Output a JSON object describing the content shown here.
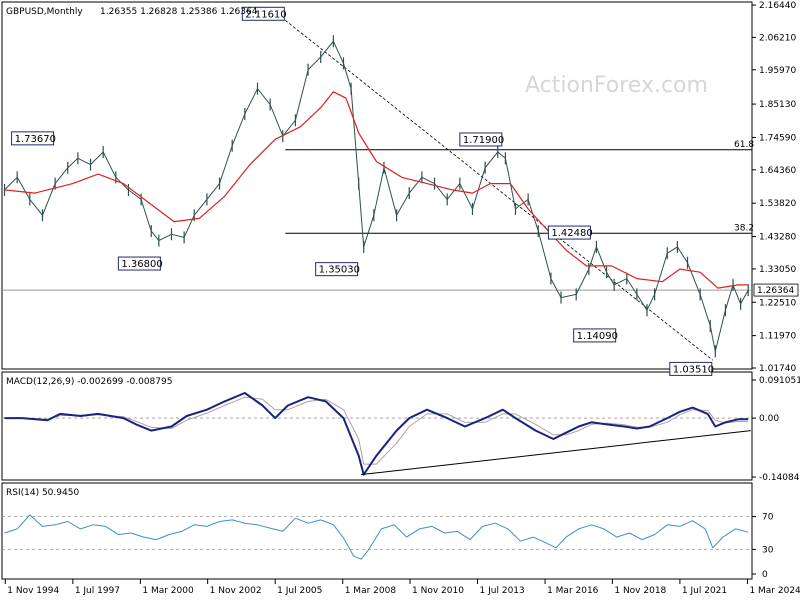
{
  "header": {
    "symbol": "GBPUSD,Monthly",
    "ohlc": "1.26355 1.26828 1.25386 1.26364"
  },
  "watermark": "ActionForex.com",
  "colors": {
    "price": "#2f4f4f",
    "ma": "#dd2222",
    "macd": "#1a237e",
    "signal": "#b0a0a8",
    "rsi": "#3a8fd6",
    "level": "#000000"
  },
  "chart_data": [
    {
      "type": "line",
      "panel": "price",
      "ylim": [
        1.0174,
        2.1644
      ],
      "y_ticks": [
        "2.16440",
        "2.06210",
        "1.95970",
        "1.85130",
        "1.74590",
        "1.64360",
        "1.53820",
        "1.43280",
        "1.33050",
        "1.22510",
        "1.11970",
        "1.01740"
      ],
      "current_value": "1.26364",
      "x_ticks": [
        "1 Nov 1994",
        "1 Jul 1997",
        "1 Mar 2000",
        "1 Nov 2002",
        "1 Jul 2005",
        "1 Mar 2008",
        "1 Nov 2010",
        "1 Jul 2013",
        "1 Mar 2016",
        "1 Nov 2018",
        "1 Jul 2021",
        "1 Mar 2024"
      ],
      "x_tick_years": [
        1994.83,
        1997.5,
        2000.17,
        2002.83,
        2005.5,
        2008.17,
        2010.83,
        2013.5,
        2016.17,
        2018.83,
        2021.5,
        2024.17
      ],
      "xlim": [
        1994.7,
        2024.35
      ],
      "series": [
        {
          "role": "price",
          "x": [
            1994.8,
            1995.3,
            1995.8,
            1996.3,
            1996.8,
            1997.3,
            1997.7,
            1998.2,
            1998.7,
            1999.2,
            1999.7,
            2000.2,
            2000.6,
            2000.9,
            2001.4,
            2001.9,
            2002.3,
            2002.8,
            2003.3,
            2003.8,
            2004.3,
            2004.8,
            2005.3,
            2005.8,
            2006.3,
            2006.8,
            2007.3,
            2007.8,
            2008.2,
            2008.5,
            2008.8,
            2009.0,
            2009.4,
            2009.8,
            2010.3,
            2010.8,
            2011.3,
            2011.8,
            2012.3,
            2012.8,
            2013.3,
            2013.8,
            2014.3,
            2014.6,
            2015.0,
            2015.5,
            2015.9,
            2016.4,
            2016.8,
            2017.4,
            2017.9,
            2018.2,
            2018.6,
            2018.9,
            2019.4,
            2019.8,
            2020.2,
            2020.5,
            2021.0,
            2021.4,
            2021.8,
            2022.3,
            2022.7,
            2022.9,
            2023.3,
            2023.6,
            2023.9,
            2024.2
          ],
          "values": [
            1.58,
            1.62,
            1.55,
            1.5,
            1.6,
            1.65,
            1.68,
            1.66,
            1.7,
            1.62,
            1.58,
            1.55,
            1.45,
            1.42,
            1.44,
            1.43,
            1.5,
            1.55,
            1.6,
            1.72,
            1.82,
            1.9,
            1.85,
            1.75,
            1.8,
            1.96,
            2.0,
            2.05,
            1.98,
            1.9,
            1.6,
            1.4,
            1.5,
            1.65,
            1.5,
            1.57,
            1.62,
            1.6,
            1.55,
            1.6,
            1.52,
            1.65,
            1.7,
            1.68,
            1.52,
            1.55,
            1.45,
            1.3,
            1.24,
            1.25,
            1.33,
            1.4,
            1.32,
            1.28,
            1.3,
            1.25,
            1.2,
            1.25,
            1.38,
            1.4,
            1.35,
            1.25,
            1.15,
            1.07,
            1.2,
            1.28,
            1.22,
            1.26364
          ]
        },
        {
          "role": "ma",
          "x": [
            1994.8,
            1996.0,
            1997.5,
            1998.5,
            1999.5,
            2000.5,
            2001.5,
            2002.5,
            2003.5,
            2004.5,
            2005.5,
            2006.5,
            2007.3,
            2007.8,
            2008.3,
            2008.8,
            2009.5,
            2010.5,
            2011.5,
            2012.5,
            2013.3,
            2014.0,
            2014.8,
            2015.5,
            2016.3,
            2017.0,
            2017.8,
            2018.8,
            2019.8,
            2020.8,
            2021.5,
            2022.3,
            2023.0,
            2023.8,
            2024.2
          ],
          "values": [
            1.58,
            1.57,
            1.6,
            1.63,
            1.6,
            1.54,
            1.48,
            1.49,
            1.56,
            1.66,
            1.74,
            1.78,
            1.84,
            1.89,
            1.87,
            1.76,
            1.67,
            1.62,
            1.6,
            1.58,
            1.57,
            1.6,
            1.6,
            1.52,
            1.45,
            1.39,
            1.34,
            1.34,
            1.3,
            1.29,
            1.33,
            1.32,
            1.27,
            1.28,
            1.28
          ]
        }
      ],
      "levels": [
        {
          "name": "61.8",
          "value": 1.707
        },
        {
          "name": "38.2",
          "value": 1.443
        },
        {
          "name": "",
          "value": 1.26364,
          "style": "current"
        }
      ],
      "trendline": {
        "from": [
          2005.9,
          2.116
        ],
        "to": [
          2022.8,
          1.042
        ]
      },
      "labels": [
        {
          "text": "2.11610",
          "x": 2005.9,
          "y": 2.1161,
          "side": "left-top"
        },
        {
          "text": "1.73670",
          "x": 1995.0,
          "y": 1.7367,
          "side": "right-top"
        },
        {
          "text": "1.36800",
          "x": 2001.0,
          "y": 1.368,
          "side": "left-bottom"
        },
        {
          "text": "1.35030",
          "x": 2008.8,
          "y": 1.3503,
          "side": "left-bottom"
        },
        {
          "text": "1.71900",
          "x": 2014.5,
          "y": 1.719,
          "side": "left-top"
        },
        {
          "text": "1.42480",
          "x": 2018.0,
          "y": 1.4248,
          "side": "left-top"
        },
        {
          "text": "1.14090",
          "x": 2019.0,
          "y": 1.1409,
          "side": "left-bottom"
        },
        {
          "text": "1.03510",
          "x": 2022.8,
          "y": 1.0351,
          "side": "left-bottom"
        }
      ]
    },
    {
      "type": "line",
      "panel": "macd",
      "title": "MACD(12,26,9) -0.002699 -0.008795",
      "ylim": [
        -0.140843,
        0.091051
      ],
      "y_ticks": [
        "0.091051",
        "0.00",
        "-0.140843"
      ],
      "series": [
        {
          "role": "macd",
          "x": [
            1994.8,
            1995.5,
            1996.5,
            1997.0,
            1997.8,
            1998.5,
            1999.5,
            2000.0,
            2000.6,
            2001.4,
            2002.0,
            2002.8,
            2003.5,
            2004.3,
            2005.0,
            2005.5,
            2006.0,
            2006.8,
            2007.5,
            2008.2,
            2008.8,
            2009.0,
            2009.5,
            2010.3,
            2010.8,
            2011.5,
            2012.3,
            2013.0,
            2013.8,
            2014.5,
            2015.0,
            2015.8,
            2016.5,
            2017.0,
            2017.5,
            2018.0,
            2018.6,
            2019.3,
            2019.8,
            2020.3,
            2021.0,
            2021.5,
            2022.0,
            2022.6,
            2022.9,
            2023.3,
            2023.8,
            2024.2
          ],
          "values": [
            0.0,
            0.0,
            -0.005,
            0.01,
            0.005,
            0.01,
            0.0,
            -0.015,
            -0.03,
            -0.02,
            0.005,
            0.02,
            0.04,
            0.06,
            0.03,
            0.0,
            0.03,
            0.05,
            0.04,
            0.0,
            -0.09,
            -0.135,
            -0.09,
            -0.03,
            0.0,
            0.02,
            0.0,
            -0.02,
            0.0,
            0.02,
            0.0,
            -0.03,
            -0.05,
            -0.035,
            -0.02,
            -0.01,
            -0.015,
            -0.02,
            -0.025,
            -0.02,
            0.0,
            0.015,
            0.025,
            0.01,
            -0.02,
            -0.01,
            -0.003,
            -0.002699
          ]
        },
        {
          "role": "signal",
          "x": [
            1994.8,
            1995.5,
            1996.5,
            1997.0,
            1997.8,
            1998.5,
            1999.5,
            2000.0,
            2000.6,
            2001.4,
            2002.0,
            2002.8,
            2003.5,
            2004.3,
            2005.0,
            2005.5,
            2006.0,
            2006.8,
            2007.5,
            2008.2,
            2008.8,
            2009.0,
            2009.5,
            2010.3,
            2010.8,
            2011.5,
            2012.3,
            2013.0,
            2013.8,
            2014.5,
            2015.0,
            2015.8,
            2016.5,
            2017.0,
            2017.5,
            2018.0,
            2018.6,
            2019.3,
            2019.8,
            2020.3,
            2021.0,
            2021.5,
            2022.0,
            2022.6,
            2022.9,
            2023.3,
            2023.8,
            2024.2
          ],
          "values": [
            0.0,
            0.0,
            -0.003,
            0.006,
            0.007,
            0.008,
            0.003,
            -0.008,
            -0.022,
            -0.025,
            -0.005,
            0.012,
            0.03,
            0.05,
            0.045,
            0.02,
            0.02,
            0.04,
            0.045,
            0.02,
            -0.05,
            -0.11,
            -0.11,
            -0.06,
            -0.02,
            0.01,
            0.01,
            -0.01,
            -0.01,
            0.01,
            0.01,
            -0.015,
            -0.04,
            -0.04,
            -0.03,
            -0.015,
            -0.012,
            -0.016,
            -0.022,
            -0.022,
            -0.01,
            0.008,
            0.02,
            0.018,
            -0.005,
            -0.012,
            -0.008,
            -0.008795
          ]
        }
      ],
      "trendline": {
        "from": [
          2008.9,
          -0.135
        ],
        "to": [
          2024.3,
          -0.03
        ]
      }
    },
    {
      "type": "line",
      "panel": "rsi",
      "title": "RSI(14) 50.9450",
      "ylim": [
        0,
        100
      ],
      "y_ticks": [
        "70",
        "30",
        "0"
      ],
      "levels": [
        70,
        30
      ],
      "series": [
        {
          "role": "rsi",
          "x": [
            1994.8,
            1995.3,
            1995.8,
            1996.3,
            1996.8,
            1997.3,
            1997.8,
            1998.3,
            1998.8,
            1999.3,
            1999.8,
            2000.3,
            2000.8,
            2001.3,
            2001.8,
            2002.3,
            2002.8,
            2003.3,
            2003.8,
            2004.3,
            2004.8,
            2005.3,
            2005.8,
            2006.3,
            2006.8,
            2007.3,
            2007.8,
            2008.2,
            2008.6,
            2008.9,
            2009.2,
            2009.7,
            2010.2,
            2010.7,
            2011.2,
            2011.7,
            2012.2,
            2012.7,
            2013.2,
            2013.7,
            2014.2,
            2014.7,
            2015.2,
            2015.7,
            2016.2,
            2016.6,
            2017.0,
            2017.5,
            2018.0,
            2018.5,
            2019.0,
            2019.5,
            2020.0,
            2020.5,
            2021.0,
            2021.5,
            2022.0,
            2022.5,
            2022.8,
            2023.2,
            2023.7,
            2024.2
          ],
          "values": [
            50,
            55,
            72,
            58,
            60,
            64,
            55,
            60,
            58,
            48,
            50,
            45,
            42,
            48,
            52,
            60,
            58,
            64,
            66,
            62,
            60,
            56,
            52,
            68,
            62,
            66,
            60,
            44,
            22,
            18,
            30,
            55,
            60,
            45,
            55,
            58,
            50,
            52,
            42,
            58,
            62,
            55,
            40,
            45,
            38,
            32,
            45,
            55,
            60,
            55,
            45,
            50,
            42,
            48,
            60,
            58,
            65,
            55,
            32,
            45,
            55,
            50.945
          ]
        }
      ]
    }
  ]
}
